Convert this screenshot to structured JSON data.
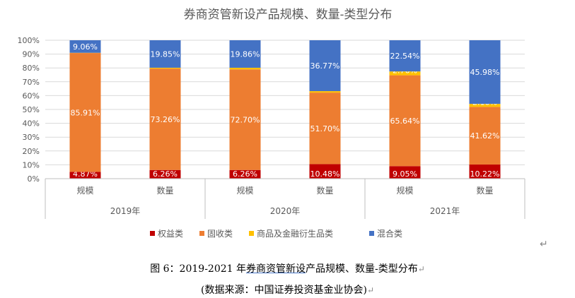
{
  "chart_data": {
    "type": "bar",
    "stacked": true,
    "title": "券商资管新设产品规模、数量-类型分布",
    "categories": [
      "规模",
      "数量",
      "规模",
      "数量",
      "规模",
      "数量"
    ],
    "groups": [
      "2019年",
      "2020年",
      "2021年"
    ],
    "y_ticks": [
      "0%",
      "10%",
      "20%",
      "30%",
      "40%",
      "50%",
      "60%",
      "70%",
      "80%",
      "90%",
      "100%"
    ],
    "ylim": [
      0,
      100
    ],
    "grid": true,
    "legend_position": "bottom",
    "series": [
      {
        "name": "权益类",
        "color": "#C00000",
        "values": [
          4.87,
          6.26,
          6.26,
          10.48,
          9.05,
          10.22
        ],
        "labels": [
          "4.87%",
          "6.26%",
          "6.26%",
          "10.48%",
          "9.05%",
          "10.22%"
        ]
      },
      {
        "name": "固收类",
        "color": "#ED7D31",
        "values": [
          85.91,
          73.26,
          72.7,
          51.7,
          65.64,
          41.62
        ],
        "labels": [
          "85.91%",
          "73.26%",
          "72.70%",
          "51.70%",
          "65.64%",
          "41.62%"
        ]
      },
      {
        "name": "商品及金融衍生品类",
        "color": "#FFC000",
        "values": [
          0.16,
          0.63,
          1.18,
          1.05,
          2.76,
          2.18
        ],
        "labels": [
          "0.16%",
          "0.63%",
          "1.18%",
          "1.05%",
          "2.76%",
          "2.18%"
        ]
      },
      {
        "name": "混合类",
        "color": "#4472C4",
        "values": [
          9.06,
          19.85,
          19.86,
          36.77,
          22.54,
          45.98
        ],
        "labels": [
          "9.06%",
          "19.85%",
          "19.86%",
          "36.77%",
          "22.54%",
          "45.98%"
        ]
      }
    ]
  },
  "caption": {
    "prefix": "图 6：2019-2021 年",
    "underlined": "券商资管新设",
    "suffix": "产品规模、数量-类型分布",
    "source": "(数据来源：中国证券投资基金业协会)",
    "return_mark": "↵"
  }
}
